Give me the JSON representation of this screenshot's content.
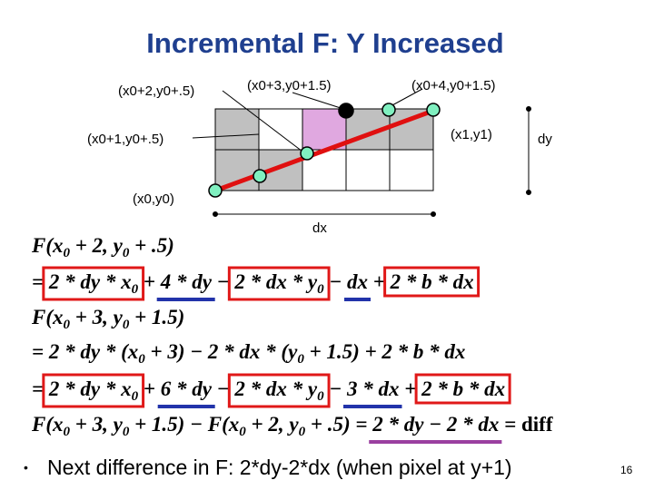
{
  "title": "Incremental F: Y Increased",
  "diagram": {
    "labels": [
      "(x0+2,y0+.5)",
      "(x0+3,y0+1.5)",
      "(x0+4,y0+1.5)",
      "(x0+1,y0+.5)",
      "(x1,y1)",
      "(x0,y0)",
      "dy",
      "dx"
    ]
  },
  "equations": [
    [
      "F(x",
      "0",
      " + 2, y",
      "0",
      " + .5)"
    ],
    [
      "= ",
      "2 * dy * x",
      "0",
      " + ",
      "4 * dy",
      " − ",
      "2 * dx * y",
      "0",
      " − ",
      "dx",
      " + ",
      "2 * b * dx"
    ],
    [
      "F(x",
      "0",
      " + 3, y",
      "0",
      " + 1.5)"
    ],
    [
      "= 2 * dy * (x",
      "0",
      " + 3) − 2 * dx * (y",
      "0",
      " + 1.5) + 2 * b * dx"
    ],
    [
      "= ",
      "2 * dy * x",
      "0",
      " + ",
      "6 * dy",
      " − ",
      "2 * dx * y",
      "0",
      " − ",
      "3 * dx",
      " + ",
      "2 * b * dx"
    ],
    [
      "F(x",
      "0",
      " + 3, y",
      "0",
      " + 1.5) − F(x",
      "0",
      " + 2, y",
      "0",
      " + .5) = ",
      "2 * dy − 2 * dx",
      " = ",
      "diff"
    ]
  ],
  "bullet": "Next difference in F: 2*dy-2*dx (when pixel at y+1)",
  "page_number": "16"
}
